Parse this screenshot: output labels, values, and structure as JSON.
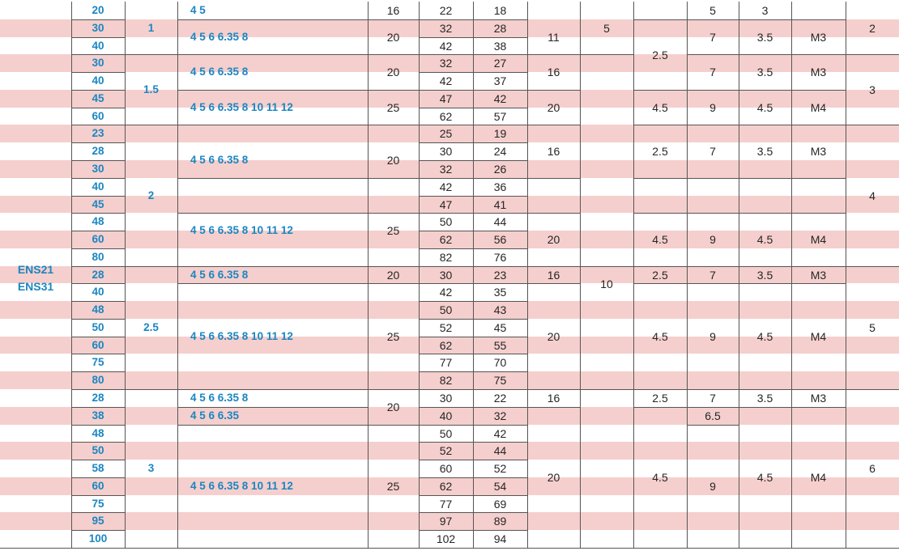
{
  "model": [
    "ENS21",
    "ENS31"
  ],
  "colors": {
    "stripe": "#f5cfcd",
    "line": "#555555",
    "blue": "#1a86c2",
    "text": "#262626"
  },
  "rows": [
    {
      "A": "20",
      "B": "22",
      "C": "18"
    },
    {
      "A": "30",
      "B": "32",
      "C": "28"
    },
    {
      "A": "40",
      "B": "42",
      "C": "38"
    },
    {
      "A": "30",
      "B": "32",
      "C": "27"
    },
    {
      "A": "40",
      "B": "42",
      "C": "37"
    },
    {
      "A": "45",
      "B": "47",
      "C": "42"
    },
    {
      "A": "60",
      "B": "62",
      "C": "57"
    },
    {
      "A": "23",
      "B": "25",
      "C": "19"
    },
    {
      "A": "28",
      "B": "30",
      "C": "24"
    },
    {
      "A": "30",
      "B": "32",
      "C": "26"
    },
    {
      "A": "40",
      "B": "42",
      "C": "36"
    },
    {
      "A": "45",
      "B": "47",
      "C": "41"
    },
    {
      "A": "48",
      "B": "50",
      "C": "44"
    },
    {
      "A": "60",
      "B": "62",
      "C": "56"
    },
    {
      "A": "80",
      "B": "82",
      "C": "76"
    },
    {
      "A": "28",
      "B": "30",
      "C": "23"
    },
    {
      "A": "40",
      "B": "42",
      "C": "35"
    },
    {
      "A": "48",
      "B": "50",
      "C": "43"
    },
    {
      "A": "50",
      "B": "52",
      "C": "45"
    },
    {
      "A": "60",
      "B": "62",
      "C": "55"
    },
    {
      "A": "75",
      "B": "77",
      "C": "70"
    },
    {
      "A": "80",
      "B": "82",
      "C": "75"
    },
    {
      "A": "28",
      "B": "30",
      "C": "22"
    },
    {
      "A": "38",
      "B": "40",
      "C": "32"
    },
    {
      "A": "48",
      "B": "50",
      "C": "42"
    },
    {
      "A": "50",
      "B": "52",
      "C": "44"
    },
    {
      "A": "58",
      "B": "60",
      "C": "52"
    },
    {
      "A": "60",
      "B": "62",
      "C": "54"
    },
    {
      "A": "75",
      "B": "77",
      "C": "69"
    },
    {
      "A": "95",
      "B": "97",
      "C": "89"
    },
    {
      "A": "100",
      "B": "102",
      "C": "94"
    }
  ],
  "pitch": [
    "1",
    "1.5",
    "2",
    "2.5",
    "3"
  ],
  "bore_sets": [
    "4  5",
    "4  5  6  6.35  8",
    "4  5  6  6.35  8",
    "4  5  6  6.35  8  10  11  12",
    "4  5  6  6.35  8",
    "4  5  6  6.35  8  10  11  12",
    "4  5  6  6.35  8",
    "4  5  6  6.35  8  10  11  12",
    "4  5  6  6.35  8",
    "4  5  6  6.35",
    "4  5  6  6.35  8  10  11  12"
  ],
  "width": [
    "16",
    "20",
    "20",
    "25",
    "20",
    "25",
    "20",
    "25",
    "20",
    "25"
  ],
  "col_d": [
    "11",
    "16",
    "20",
    "16",
    "20",
    "16",
    "20",
    "16",
    "20"
  ],
  "col_e": [
    "5",
    "10"
  ],
  "col_f": [
    "2.5",
    "4.5",
    "2.5",
    "4.5",
    "2.5",
    "4.5",
    "2.5",
    "4.5"
  ],
  "col_g": [
    "5",
    "7",
    "7",
    "9",
    "7",
    "9",
    "7",
    "9",
    "7",
    "6.5",
    "9"
  ],
  "col_h": [
    "3",
    "3.5",
    "3.5",
    "4.5",
    "3.5",
    "4.5",
    "3.5",
    "4.5",
    "3.5",
    "4.5"
  ],
  "screw": [
    "M3",
    "M3",
    "M4",
    "M3",
    "M4",
    "M3",
    "M4",
    "M3",
    "M4"
  ],
  "col_j": [
    "2",
    "3",
    "4",
    "5",
    "6"
  ]
}
